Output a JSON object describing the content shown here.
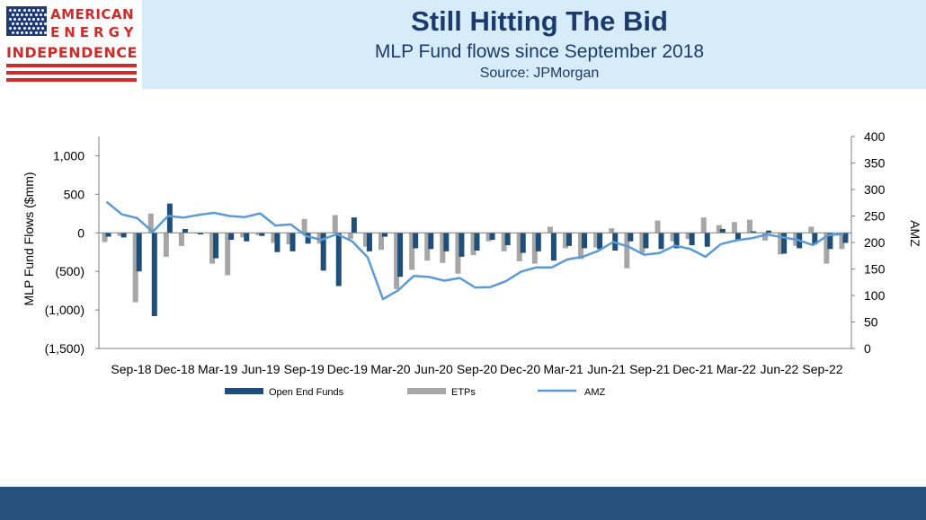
{
  "header": {
    "logo": {
      "line1": "AMERICAN",
      "line2": "ENERGY",
      "line3": "INDEPENDENCE"
    },
    "title": "Still Hitting The Bid",
    "subtitle": "MLP Fund flows since September 2018",
    "source": "Source: JPMorgan"
  },
  "colors": {
    "open_end": "#1f4e79",
    "etp": "#a6a6a6",
    "amz": "#5b9bd5",
    "header_bg": "#d6ecf8",
    "footer": "#27517e",
    "logo_red": "#cf2b2b",
    "title": "#1c3a6e"
  },
  "chart_data": {
    "type": "bar",
    "ylabel": "MLP Fund Flows ($mm)",
    "y2label": "AMZ",
    "ylim": [
      -1500,
      1250
    ],
    "y2lim": [
      0,
      400
    ],
    "yticks": [
      "1,000",
      "500",
      "0",
      "(500)",
      "(1,000)",
      "(1,500)"
    ],
    "ytick_values": [
      1000,
      500,
      0,
      -500,
      -1000,
      -1500
    ],
    "y2ticks": [
      "400",
      "350",
      "300",
      "250",
      "200",
      "150",
      "100",
      "50",
      "0"
    ],
    "y2tick_values": [
      400,
      350,
      300,
      250,
      200,
      150,
      100,
      50,
      0
    ],
    "x_labels": [
      "Sep-18",
      "Dec-18",
      "Mar-19",
      "Jun-19",
      "Sep-19",
      "Dec-19",
      "Mar-20",
      "Jun-20",
      "Sep-20",
      "Dec-20",
      "Mar-21",
      "Jun-21",
      "Sep-21",
      "Dec-21",
      "Mar-22",
      "Jun-22",
      "Sep-22"
    ],
    "legend": [
      "Open End Funds",
      "ETPs",
      "AMZ"
    ],
    "legend_position": "bottom",
    "grid": false,
    "series": [
      {
        "name": "Open End Funds",
        "type": "bar",
        "values": [
          -50,
          -60,
          -500,
          -1080,
          380,
          50,
          -20,
          -330,
          -90,
          -110,
          -40,
          -250,
          -240,
          -140,
          -490,
          -690,
          200,
          -240,
          -50,
          -570,
          -200,
          -210,
          -240,
          -310,
          -230,
          -90,
          -160,
          -260,
          -240,
          -360,
          -170,
          -200,
          -210,
          -230,
          -110,
          -200,
          -210,
          -200,
          -160,
          -180,
          50,
          -90,
          20,
          30,
          -270,
          -200,
          -150,
          -210,
          -130
        ]
      },
      {
        "name": "ETPs",
        "type": "bar",
        "values": [
          -120,
          -40,
          -900,
          250,
          -310,
          -170,
          -10,
          -400,
          -550,
          -60,
          -30,
          -130,
          -150,
          180,
          -140,
          230,
          -80,
          -180,
          -220,
          -730,
          -480,
          -360,
          -390,
          -530,
          -290,
          -110,
          -240,
          -370,
          -400,
          80,
          -200,
          -340,
          -190,
          60,
          -460,
          -260,
          160,
          -110,
          -80,
          200,
          100,
          140,
          170,
          -100,
          -280,
          -170,
          80,
          -400,
          -210
        ]
      },
      {
        "name": "AMZ",
        "type": "line",
        "values": [
          277,
          253,
          246,
          220,
          250,
          247,
          252,
          256,
          250,
          248,
          255,
          232,
          234,
          212,
          205,
          216,
          202,
          172,
          93,
          110,
          137,
          135,
          128,
          133,
          115,
          116,
          127,
          145,
          153,
          153,
          168,
          173,
          184,
          201,
          192,
          177,
          180,
          194,
          188,
          173,
          197,
          204,
          208,
          215,
          210,
          205,
          195,
          214,
          216
        ]
      }
    ]
  }
}
